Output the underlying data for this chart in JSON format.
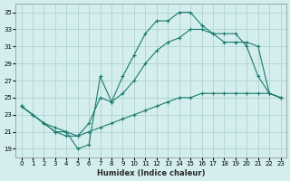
{
  "xlabel": "Humidex (Indice chaleur)",
  "ylabel": "",
  "bg_color": "#d4eeee",
  "grid_color": "#aacccc",
  "line_color": "#1a7a6e",
  "xlim": [
    -0.5,
    23.5
  ],
  "ylim": [
    18,
    36
  ],
  "yticks": [
    19,
    21,
    23,
    25,
    27,
    29,
    31,
    33,
    35
  ],
  "xticks": [
    0,
    1,
    2,
    3,
    4,
    5,
    6,
    7,
    8,
    9,
    10,
    11,
    12,
    13,
    14,
    15,
    16,
    17,
    18,
    19,
    20,
    21,
    22,
    23
  ],
  "curve1_x": [
    0,
    1,
    2,
    3,
    4,
    5,
    6,
    7,
    8,
    9,
    10,
    11,
    12,
    13,
    14,
    15,
    16,
    17,
    18,
    19,
    20,
    21,
    22,
    23
  ],
  "curve1_y": [
    24.0,
    23.0,
    22.0,
    21.0,
    21.0,
    19.0,
    19.5,
    27.5,
    24.5,
    27.5,
    30.0,
    32.5,
    34.0,
    34.0,
    35.0,
    35.0,
    33.5,
    32.5,
    32.5,
    32.5,
    31.0,
    27.5,
    25.5,
    25.0
  ],
  "curve2_x": [
    0,
    2,
    3,
    4,
    5,
    6,
    7,
    8,
    9,
    10,
    11,
    12,
    13,
    14,
    15,
    16,
    17,
    18,
    19,
    20,
    21,
    22,
    23
  ],
  "curve2_y": [
    24.0,
    22.0,
    21.0,
    20.5,
    20.5,
    22.0,
    25.0,
    24.5,
    25.5,
    27.0,
    29.0,
    30.5,
    31.5,
    32.0,
    33.0,
    33.0,
    32.5,
    31.5,
    31.5,
    31.5,
    31.0,
    25.5,
    25.0
  ],
  "curve3_x": [
    0,
    1,
    2,
    3,
    4,
    5,
    6,
    7,
    8,
    9,
    10,
    11,
    12,
    13,
    14,
    15,
    16,
    17,
    18,
    19,
    20,
    21,
    22,
    23
  ],
  "curve3_y": [
    24.0,
    23.0,
    22.0,
    21.5,
    21.0,
    20.5,
    21.0,
    21.5,
    22.0,
    22.5,
    23.0,
    23.5,
    24.0,
    24.5,
    25.0,
    25.0,
    25.5,
    25.5,
    25.5,
    25.5,
    25.5,
    25.5,
    25.5,
    25.0
  ]
}
